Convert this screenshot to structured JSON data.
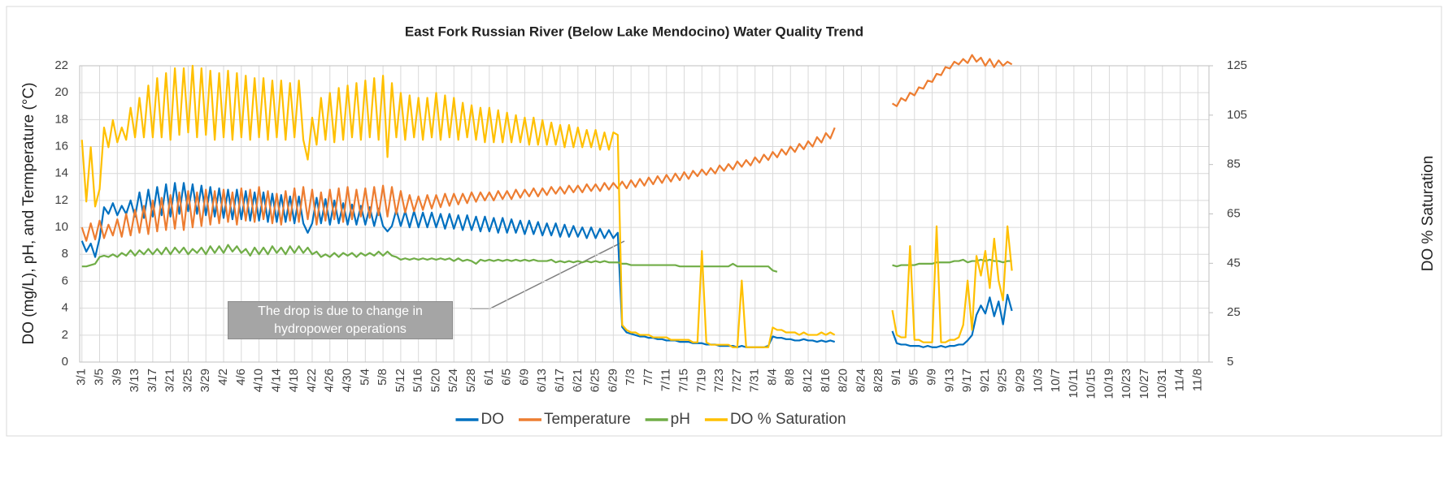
{
  "chart_data": {
    "type": "line",
    "title": "East Fork Russian River (Below Lake Mendocino) Water Quality Trend",
    "ylabel": "DO (mg/L), pH, and Termperature (°C)",
    "y2label": "DO % Saturation",
    "annotation": "The drop is due to change in hydropower operations",
    "grid": true,
    "legend": "bottom",
    "ylim": [
      0,
      22
    ],
    "yticks": [
      0,
      2,
      4,
      6,
      8,
      10,
      12,
      14,
      16,
      18,
      20,
      22
    ],
    "y2lim": [
      5,
      125
    ],
    "y2ticks": [
      5,
      25,
      45,
      65,
      85,
      105,
      125
    ],
    "categories": [
      "3/1",
      null,
      null,
      null,
      "3/5",
      null,
      null,
      null,
      "3/9",
      null,
      null,
      null,
      "3/13",
      null,
      null,
      null,
      "3/17",
      null,
      null,
      null,
      "3/21",
      null,
      null,
      null,
      "3/25",
      null,
      null,
      null,
      "3/29",
      null,
      null,
      null,
      "4/2",
      null,
      null,
      null,
      "4/6",
      null,
      null,
      null,
      "4/10",
      null,
      null,
      null,
      "4/14",
      null,
      null,
      null,
      "4/18",
      null,
      null,
      null,
      "4/22",
      null,
      null,
      null,
      "4/26",
      null,
      null,
      null,
      "4/30",
      null,
      null,
      null,
      "5/4",
      null,
      null,
      null,
      "5/8",
      null,
      null,
      null,
      "5/12",
      null,
      null,
      null,
      "5/16",
      null,
      null,
      null,
      "5/20",
      null,
      null,
      null,
      "5/24",
      null,
      null,
      null,
      "5/28",
      null,
      null,
      null,
      "6/1",
      null,
      null,
      null,
      "6/5",
      null,
      null,
      null,
      "6/9",
      null,
      null,
      null,
      "6/13",
      null,
      null,
      null,
      "6/17",
      null,
      null,
      null,
      "6/21",
      null,
      null,
      null,
      "6/25",
      null,
      null,
      null,
      "6/29",
      null,
      null,
      null,
      "7/3",
      null,
      null,
      null,
      "7/7",
      null,
      null,
      null,
      "7/11",
      null,
      null,
      null,
      "7/15",
      null,
      null,
      null,
      "7/19",
      null,
      null,
      null,
      "7/23",
      null,
      null,
      null,
      "7/27",
      null,
      null,
      null,
      "7/31",
      null,
      null,
      null,
      "8/4",
      null,
      null,
      null,
      "8/8",
      null,
      null,
      null,
      "8/12",
      null,
      null,
      null,
      "8/16",
      null,
      null,
      null,
      "8/20",
      null,
      null,
      null,
      "8/24",
      null,
      null,
      null,
      "8/28",
      null,
      null,
      null,
      "9/1",
      null,
      null,
      null,
      "9/5",
      null,
      null,
      null,
      "9/9",
      null,
      null,
      null,
      "9/13",
      null,
      null,
      null,
      "9/17",
      null,
      null,
      null,
      "9/21",
      null,
      null,
      null,
      "9/25",
      null,
      null,
      null,
      "9/29",
      null,
      null,
      null,
      "10/3",
      null,
      null,
      null,
      "10/7",
      null,
      null,
      null,
      "10/11",
      null,
      null,
      null,
      "10/15",
      null,
      null,
      null,
      "10/19",
      null,
      null,
      null,
      "10/23",
      null,
      null,
      null,
      "10/27",
      null,
      null,
      null,
      "10/31",
      null,
      null,
      null,
      "11/4",
      null,
      null,
      null,
      "11/8",
      null,
      null
    ],
    "series": [
      {
        "name": "DO",
        "color": "#0070c0",
        "values": [
          9.0,
          8.2,
          8.8,
          7.8,
          9.2,
          11.5,
          11.0,
          11.8,
          10.9,
          11.6,
          11.0,
          12.0,
          10.8,
          12.6,
          10.7,
          12.8,
          10.8,
          13.0,
          10.9,
          13.2,
          10.8,
          13.3,
          11.0,
          13.3,
          11.2,
          13.2,
          11.0,
          13.1,
          10.9,
          13.0,
          10.8,
          12.9,
          10.7,
          12.8,
          10.6,
          12.8,
          10.6,
          12.7,
          10.5,
          12.6,
          10.5,
          12.6,
          10.4,
          12.5,
          10.4,
          12.4,
          10.4,
          12.3,
          10.3,
          12.3,
          10.3,
          9.6,
          10.3,
          12.2,
          10.3,
          12.1,
          10.2,
          12.0,
          10.3,
          11.8,
          10.2,
          11.7,
          10.2,
          11.6,
          10.2,
          11.5,
          10.1,
          11.4,
          10.1,
          9.7,
          10.1,
          11.3,
          10.1,
          11.2,
          10.0,
          11.2,
          10.0,
          11.1,
          10.0,
          11.1,
          10.0,
          11.0,
          9.9,
          11.0,
          9.9,
          10.9,
          9.8,
          10.9,
          9.8,
          10.8,
          9.7,
          10.8,
          9.7,
          10.7,
          9.6,
          10.7,
          9.6,
          10.6,
          9.6,
          10.5,
          9.5,
          10.5,
          9.5,
          10.4,
          9.4,
          10.3,
          9.4,
          10.3,
          9.3,
          10.2,
          9.3,
          10.1,
          9.3,
          10.0,
          9.2,
          10.0,
          9.2,
          9.9,
          9.2,
          9.8,
          9.2,
          9.6,
          2.6,
          2.2,
          2.1,
          2.0,
          1.9,
          1.9,
          1.8,
          1.8,
          1.7,
          1.7,
          1.6,
          1.6,
          1.6,
          1.5,
          1.5,
          1.5,
          1.4,
          1.4,
          1.4,
          1.3,
          1.3,
          1.3,
          1.2,
          1.2,
          1.2,
          1.2,
          1.1,
          1.2,
          1.1,
          1.1,
          1.1,
          1.1,
          1.1,
          1.2,
          1.9,
          1.8,
          1.8,
          1.7,
          1.7,
          1.6,
          1.6,
          1.7,
          1.6,
          1.6,
          1.5,
          1.6,
          1.5,
          1.6,
          1.5,
          null,
          null,
          null,
          null,
          null,
          null,
          null,
          null,
          null,
          null,
          null,
          null,
          2.3,
          1.4,
          1.3,
          1.3,
          1.2,
          1.2,
          1.2,
          1.1,
          1.2,
          1.1,
          1.1,
          1.2,
          1.1,
          1.2,
          1.2,
          1.3,
          1.3,
          1.6,
          2.0,
          3.5,
          4.2,
          3.6,
          4.8,
          3.4,
          4.5,
          2.8,
          5.0,
          3.8,
          null,
          null,
          null,
          null,
          null,
          null,
          null,
          null,
          null,
          null,
          null,
          null,
          null,
          null,
          null,
          null,
          null,
          null,
          null,
          null,
          null,
          null,
          null,
          null,
          null,
          null,
          null,
          null,
          null,
          null,
          null,
          null,
          null,
          null,
          null,
          null,
          null,
          null,
          null,
          null,
          null,
          null,
          null,
          null
        ]
      },
      {
        "name": "Temperature",
        "color": "#ed7d31",
        "values": [
          10.0,
          9.0,
          10.3,
          9.1,
          10.5,
          9.2,
          10.2,
          9.4,
          10.6,
          9.3,
          11.0,
          9.4,
          11.3,
          9.6,
          11.6,
          9.5,
          12.0,
          9.7,
          12.2,
          9.8,
          12.4,
          9.9,
          12.6,
          9.8,
          12.7,
          10.0,
          12.6,
          10.1,
          12.8,
          10.2,
          12.7,
          10.3,
          12.8,
          10.4,
          12.6,
          10.2,
          12.9,
          10.5,
          12.8,
          10.4,
          13.0,
          10.6,
          12.7,
          10.3,
          12.5,
          10.2,
          12.7,
          10.5,
          12.9,
          10.4,
          13.0,
          10.6,
          12.8,
          10.2,
          12.6,
          10.5,
          12.8,
          10.6,
          12.9,
          10.4,
          13.0,
          10.6,
          12.8,
          10.8,
          12.9,
          10.7,
          13.0,
          10.9,
          13.1,
          10.8,
          13.0,
          11.0,
          12.7,
          11.1,
          12.4,
          11.2,
          12.3,
          11.3,
          12.4,
          11.4,
          12.4,
          11.5,
          12.5,
          11.6,
          12.5,
          11.7,
          12.5,
          11.8,
          12.6,
          11.9,
          12.6,
          12.0,
          12.6,
          12.0,
          12.7,
          12.1,
          12.7,
          12.1,
          12.8,
          12.2,
          12.8,
          12.3,
          12.9,
          12.3,
          12.9,
          12.4,
          13.0,
          12.5,
          13.0,
          12.5,
          13.1,
          12.6,
          13.1,
          12.6,
          13.2,
          12.7,
          13.2,
          12.7,
          13.3,
          12.8,
          13.3,
          12.9,
          13.4,
          12.9,
          13.5,
          13.0,
          13.6,
          13.1,
          13.7,
          13.2,
          13.8,
          13.3,
          13.9,
          13.4,
          14.0,
          13.5,
          14.1,
          13.6,
          14.2,
          13.8,
          14.3,
          13.9,
          14.4,
          14.0,
          14.6,
          14.2,
          14.7,
          14.3,
          14.9,
          14.5,
          15.0,
          14.6,
          15.2,
          14.8,
          15.4,
          15.0,
          15.6,
          15.2,
          15.8,
          15.4,
          16.0,
          15.6,
          16.2,
          15.8,
          16.4,
          16.0,
          16.7,
          16.3,
          17.0,
          16.6,
          17.4,
          null,
          null,
          null,
          null,
          null,
          null,
          null,
          null,
          null,
          null,
          null,
          null,
          19.2,
          19.0,
          19.6,
          19.4,
          20.0,
          19.8,
          20.4,
          20.3,
          20.9,
          20.8,
          21.4,
          21.3,
          21.9,
          21.8,
          22.3,
          22.1,
          22.5,
          22.2,
          22.8,
          22.3,
          22.6,
          22.0,
          22.5,
          21.9,
          22.4,
          22.0,
          22.3,
          22.1,
          null,
          null,
          null,
          null,
          null,
          null,
          null,
          null,
          null,
          null,
          null,
          null,
          null,
          null,
          null,
          null,
          null,
          null,
          null,
          null,
          null,
          null,
          null,
          null,
          null,
          null,
          null,
          null,
          null,
          null,
          null,
          null,
          null,
          null,
          null,
          null,
          null,
          null,
          null,
          null,
          null,
          null,
          null,
          null
        ]
      },
      {
        "name": "pH",
        "color": "#70ad47",
        "values": [
          7.1,
          7.1,
          7.2,
          7.3,
          7.8,
          7.9,
          7.8,
          8.0,
          7.8,
          8.1,
          7.9,
          8.3,
          7.9,
          8.3,
          8.0,
          8.4,
          8.0,
          8.4,
          8.0,
          8.5,
          8.0,
          8.5,
          8.1,
          8.5,
          8.0,
          8.4,
          8.1,
          8.5,
          8.0,
          8.6,
          8.1,
          8.6,
          8.1,
          8.7,
          8.2,
          8.6,
          8.1,
          8.4,
          7.9,
          8.5,
          8.0,
          8.5,
          8.0,
          8.6,
          8.1,
          8.5,
          8.0,
          8.6,
          8.1,
          8.6,
          8.1,
          8.5,
          8.0,
          8.2,
          7.8,
          8.0,
          7.8,
          8.1,
          7.8,
          8.1,
          7.9,
          8.1,
          7.8,
          8.1,
          7.9,
          8.1,
          7.9,
          8.2,
          7.9,
          8.2,
          7.9,
          7.8,
          7.6,
          7.7,
          7.6,
          7.7,
          7.6,
          7.7,
          7.6,
          7.7,
          7.6,
          7.7,
          7.6,
          7.7,
          7.5,
          7.7,
          7.5,
          7.6,
          7.5,
          7.3,
          7.6,
          7.5,
          7.6,
          7.5,
          7.6,
          7.5,
          7.6,
          7.5,
          7.6,
          7.5,
          7.6,
          7.5,
          7.6,
          7.5,
          7.5,
          7.5,
          7.6,
          7.4,
          7.5,
          7.4,
          7.5,
          7.4,
          7.5,
          7.4,
          7.5,
          7.4,
          7.5,
          7.4,
          7.5,
          7.4,
          7.4,
          7.4,
          7.3,
          7.3,
          7.2,
          7.2,
          7.2,
          7.2,
          7.2,
          7.2,
          7.2,
          7.2,
          7.2,
          7.2,
          7.2,
          7.1,
          7.1,
          7.1,
          7.1,
          7.1,
          7.1,
          7.1,
          7.1,
          7.1,
          7.1,
          7.1,
          7.1,
          7.3,
          7.1,
          7.1,
          7.1,
          7.1,
          7.1,
          7.1,
          7.1,
          7.1,
          6.8,
          6.7,
          null,
          null,
          null,
          null,
          null,
          null,
          null,
          null,
          null,
          null,
          null,
          null,
          null,
          null,
          null,
          null,
          null,
          null,
          null,
          null,
          null,
          null,
          null,
          null,
          null,
          7.2,
          7.1,
          7.2,
          7.2,
          7.2,
          7.2,
          7.3,
          7.3,
          7.3,
          7.3,
          7.4,
          7.4,
          7.4,
          7.4,
          7.5,
          7.5,
          7.6,
          7.4,
          7.5,
          7.5,
          7.6,
          7.5,
          7.6,
          7.5,
          7.5,
          7.4,
          7.5,
          7.5,
          null,
          null,
          null,
          null,
          null,
          null,
          null,
          null,
          null,
          null,
          null,
          null,
          null,
          null,
          null,
          null,
          null,
          null,
          null,
          null,
          null,
          null,
          null,
          null,
          null,
          null,
          null,
          null,
          null,
          null,
          null,
          null,
          null,
          null,
          null,
          null,
          null,
          null,
          null,
          null,
          null,
          null,
          null,
          null
        ]
      },
      {
        "name": "DO % Saturation",
        "color": "#ffc000",
        "axis": "y2",
        "values": [
          95,
          70,
          92,
          68,
          75,
          100,
          92,
          103,
          94,
          100,
          95,
          108,
          96,
          112,
          96,
          117,
          96,
          120,
          96,
          122,
          95,
          124,
          97,
          124,
          98,
          125,
          96,
          124,
          97,
          123,
          95,
          122,
          96,
          123,
          95,
          122,
          96,
          121,
          95,
          120,
          96,
          120,
          95,
          119,
          96,
          119,
          95,
          118,
          96,
          119,
          95,
          87,
          104,
          93,
          112,
          95,
          114,
          94,
          116,
          95,
          117,
          96,
          118,
          95,
          119,
          96,
          120,
          95,
          121,
          88,
          118,
          96,
          114,
          95,
          113,
          96,
          112,
          95,
          112,
          96,
          114,
          95,
          113,
          96,
          112,
          95,
          110,
          96,
          109,
          95,
          108,
          94,
          108,
          94,
          107,
          94,
          106,
          94,
          105,
          94,
          104,
          93,
          104,
          93,
          103,
          93,
          102,
          93,
          101,
          92,
          101,
          92,
          100,
          92,
          99,
          92,
          99,
          91,
          98,
          91,
          98,
          97,
          20,
          18,
          17,
          17,
          16,
          16,
          16,
          15,
          15,
          15,
          15,
          14,
          14,
          14,
          14,
          14,
          13,
          13,
          50,
          13,
          12,
          12,
          12,
          12,
          12,
          11,
          11,
          38,
          11,
          11,
          11,
          11,
          11,
          11,
          19,
          18,
          18,
          17,
          17,
          17,
          16,
          17,
          16,
          16,
          16,
          17,
          16,
          17,
          16,
          null,
          null,
          null,
          null,
          null,
          null,
          null,
          null,
          null,
          null,
          null,
          null,
          26,
          16,
          15,
          15,
          52,
          14,
          14,
          13,
          13,
          13,
          60,
          13,
          13,
          14,
          14,
          15,
          20,
          38,
          18,
          48,
          40,
          50,
          35,
          55,
          38,
          30,
          60,
          42,
          null,
          null,
          null,
          null,
          null,
          null,
          null,
          null,
          null,
          null,
          null,
          null,
          null,
          null,
          null,
          null,
          null,
          null,
          null,
          null,
          null,
          null,
          null,
          null,
          null,
          null,
          null,
          null,
          null,
          null,
          null,
          null,
          null,
          null,
          null,
          null,
          null,
          null,
          null,
          null,
          null,
          null,
          null,
          null
        ]
      }
    ]
  }
}
